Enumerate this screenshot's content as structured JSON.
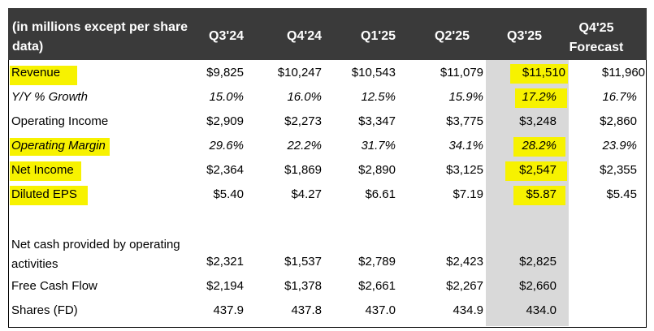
{
  "header": {
    "label": "(in millions except per share data)",
    "columns": [
      "Q3'24",
      "Q4'24",
      "Q1'25",
      "Q2'25",
      "Q3'25",
      "Q4'25 Forecast"
    ]
  },
  "rows": [
    {
      "label": "Revenue",
      "values": [
        "$9,825",
        "$10,247",
        "$10,543",
        "$11,079",
        "$11,510",
        "$11,960"
      ]
    },
    {
      "label": "Y/Y % Growth",
      "values": [
        "15.0%",
        "16.0%",
        "12.5%",
        "15.9%",
        "17.2%",
        "16.7%"
      ]
    },
    {
      "label": "Operating Income",
      "values": [
        "$2,909",
        "$2,273",
        "$3,347",
        "$3,775",
        "$3,248",
        "$2,860"
      ]
    },
    {
      "label": "Operating Margin",
      "values": [
        "29.6%",
        "22.2%",
        "31.7%",
        "34.1%",
        "28.2%",
        "23.9%"
      ]
    },
    {
      "label": "Net Income",
      "values": [
        "$2,364",
        "$1,869",
        "$2,890",
        "$3,125",
        "$2,547",
        "$2,355"
      ]
    },
    {
      "label": "Diluted EPS",
      "values": [
        "$5.40",
        "$4.27",
        "$6.61",
        "$7.19",
        "$5.87",
        "$5.45"
      ]
    },
    {
      "label": "Net cash provided by operating activities",
      "values": [
        "$2,321",
        "$1,537",
        "$2,789",
        "$2,423",
        "$2,825",
        ""
      ]
    },
    {
      "label": "Free Cash Flow",
      "values": [
        "$2,194",
        "$1,378",
        "$2,661",
        "$2,267",
        "$2,660",
        ""
      ]
    },
    {
      "label": "Shares (FD)",
      "values": [
        "437.9",
        "437.8",
        "437.0",
        "434.9",
        "434.0",
        ""
      ]
    }
  ],
  "colors": {
    "header_bg": "#3a3a3a",
    "highlight": "#f7f200",
    "shaded_column": "#d9d9d9"
  }
}
